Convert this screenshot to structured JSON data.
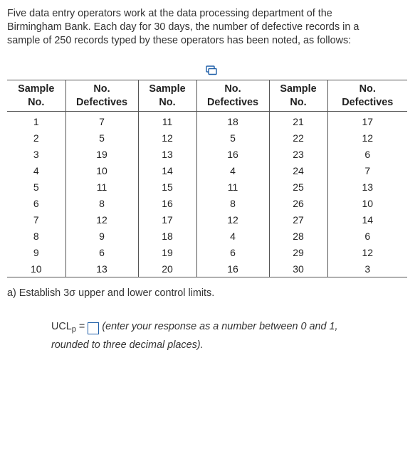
{
  "intro": {
    "line1": "Five data entry operators work at the data processing department of the",
    "line2": "Birmingham Bank. Each day for 30 days, the number of defective records in a",
    "line3": "sample of 250 records typed by these operators has been noted, as follows:"
  },
  "table": {
    "headers": [
      {
        "line1": "Sample",
        "line2": "No."
      },
      {
        "line1": "No.",
        "line2": "Defectives"
      },
      {
        "line1": "Sample",
        "line2": "No."
      },
      {
        "line1": "No.",
        "line2": "Defectives"
      },
      {
        "line1": "Sample",
        "line2": "No."
      },
      {
        "line1": "No.",
        "line2": "Defectives"
      }
    ],
    "rows": [
      [
        "1",
        "7",
        "11",
        "18",
        "21",
        "17"
      ],
      [
        "2",
        "5",
        "12",
        "5",
        "22",
        "12"
      ],
      [
        "3",
        "19",
        "13",
        "16",
        "23",
        "6"
      ],
      [
        "4",
        "10",
        "14",
        "4",
        "24",
        "7"
      ],
      [
        "5",
        "11",
        "15",
        "11",
        "25",
        "13"
      ],
      [
        "6",
        "8",
        "16",
        "8",
        "26",
        "10"
      ],
      [
        "7",
        "12",
        "17",
        "12",
        "27",
        "14"
      ],
      [
        "8",
        "9",
        "18",
        "4",
        "28",
        "6"
      ],
      [
        "9",
        "6",
        "19",
        "6",
        "29",
        "12"
      ],
      [
        "10",
        "13",
        "20",
        "16",
        "30",
        "3"
      ]
    ]
  },
  "icons": {
    "copy": "copy-table-icon"
  },
  "question": {
    "text": "a) Establish 3σ upper and lower control limits."
  },
  "answer": {
    "label_main": "UCL",
    "label_sub": "p",
    "equals": "=",
    "input_value": "",
    "hint_line1": "(enter your response as a number between 0 and 1,",
    "hint_line2": "rounded to three decimal places)."
  },
  "colors": {
    "text": "#333333",
    "rule": "#555555",
    "input_border": "#1f5fa8"
  }
}
